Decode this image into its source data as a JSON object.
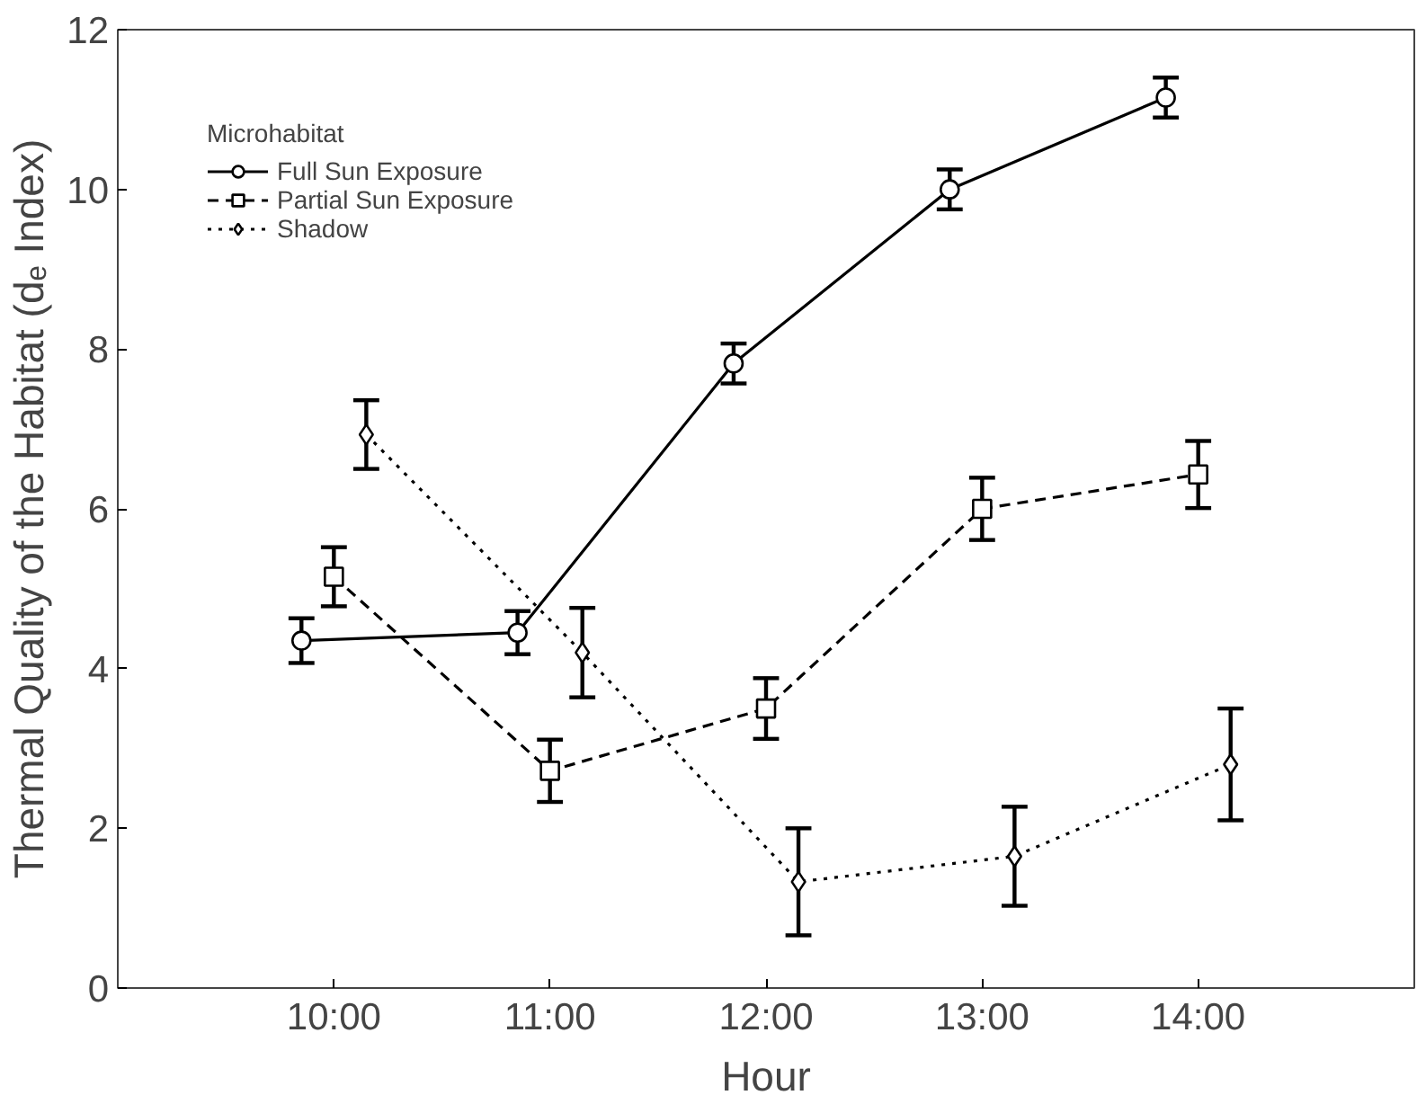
{
  "chart_data": {
    "type": "line",
    "xlabel": "Hour",
    "ylabel": "Thermal Quality of the Habitat (dₑ Index)",
    "legend_title": "Microhabitat",
    "xlim": [
      9,
      15
    ],
    "ylim": [
      0,
      12
    ],
    "xticks": [
      {
        "value": 10,
        "label": "10:00"
      },
      {
        "value": 11,
        "label": "11:00"
      },
      {
        "value": 12,
        "label": "12:00"
      },
      {
        "value": 13,
        "label": "13:00"
      },
      {
        "value": 14,
        "label": "14:00"
      }
    ],
    "yticks": [
      0,
      2,
      4,
      6,
      8,
      10,
      12
    ],
    "grid": false,
    "legend": "top left",
    "series": [
      {
        "name": "Full Sun Exposure",
        "color": "#000000",
        "marker": "circle",
        "line_style": "solid",
        "x": [
          9.85,
          10.85,
          11.85,
          12.85,
          13.85
        ],
        "values": [
          4.35,
          4.45,
          7.82,
          10.0,
          11.15
        ],
        "errors": [
          0.28,
          0.27,
          0.25,
          0.25,
          0.25
        ]
      },
      {
        "name": "Partial Sun Exposure",
        "color": "#000000",
        "marker": "square",
        "line_style": "dashed",
        "x": [
          10,
          11,
          12,
          13,
          14
        ],
        "values": [
          5.15,
          2.72,
          3.5,
          6.0,
          6.43
        ],
        "errors": [
          0.37,
          0.39,
          0.38,
          0.39,
          0.42
        ]
      },
      {
        "name": "Shadow",
        "color": "#000000",
        "marker": "diamond",
        "line_style": "dotted",
        "x": [
          10.15,
          11.15,
          12.15,
          13.15,
          14.15
        ],
        "values": [
          6.93,
          4.2,
          1.33,
          1.65,
          2.8
        ],
        "errors": [
          0.43,
          0.56,
          0.67,
          0.62,
          0.7
        ]
      }
    ]
  }
}
